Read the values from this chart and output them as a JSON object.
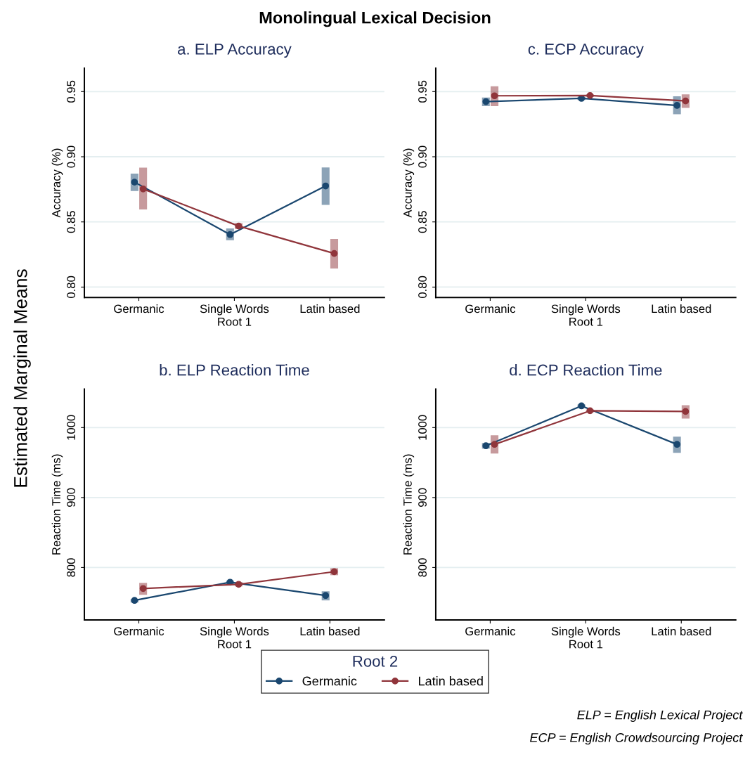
{
  "chart_data": [
    {
      "type": "line",
      "title": "a. ELP Accuracy",
      "xlabel": "Root 1",
      "ylabel": "Accuracy (%)",
      "categories": [
        "Germanic",
        "Single Words",
        "Latin based"
      ],
      "ylim": [
        0.792,
        0.968
      ],
      "yticks": [
        {
          "value": 0.8,
          "label": "0.80"
        },
        {
          "value": 0.85,
          "label": "0.85"
        },
        {
          "value": 0.9,
          "label": "0.90"
        },
        {
          "value": 0.95,
          "label": "0.95"
        }
      ],
      "grid": "y",
      "marker": "circle",
      "line_style": "solid",
      "legend": "bottom",
      "legend_title": "Root 2",
      "annotations": [
        "Monolingual Lexical Decision",
        "Estimated Marginal Means"
      ],
      "series": [
        {
          "name": "Germanic",
          "color": "#1a476f",
          "values": [
            0.8805,
            0.8403,
            0.8776
          ],
          "errors": [
            [
              0.8737,
              0.887
            ],
            [
              0.8359,
              0.845
            ],
            [
              0.8631,
              0.8918
            ]
          ]
        },
        {
          "name": "Latin based",
          "color": "#90353b",
          "values": [
            0.8753,
            0.8468,
            0.8258
          ],
          "errors": [
            [
              0.8595,
              0.8916
            ],
            [
              0.8446,
              0.849
            ],
            [
              0.8142,
              0.8369
            ]
          ]
        }
      ]
    },
    {
      "type": "line",
      "title": "c. ECP Accuracy",
      "xlabel": "Root 1",
      "ylabel": "Accuracy (%)",
      "categories": [
        "Germanic",
        "Single Words",
        "Latin based"
      ],
      "ylim": [
        0.792,
        0.968
      ],
      "yticks": [
        {
          "value": 0.8,
          "label": "0.80"
        },
        {
          "value": 0.85,
          "label": "0.85"
        },
        {
          "value": 0.9,
          "label": "0.90"
        },
        {
          "value": 0.95,
          "label": "0.95"
        }
      ],
      "grid": "y",
      "marker": "circle",
      "line_style": "solid",
      "series": [
        {
          "color": "#1a476f",
          "values": [
            0.9423,
            0.9448,
            0.9394
          ],
          "errors": [
            [
              0.9389,
              0.9455
            ],
            [
              0.9436,
              0.946
            ],
            [
              0.9326,
              0.9464
            ]
          ]
        },
        {
          "color": "#90353b",
          "values": [
            0.9468,
            0.947,
            0.9428
          ],
          "errors": [
            [
              0.9389,
              0.9541
            ],
            [
              0.946,
              0.9479
            ],
            [
              0.9375,
              0.9479
            ]
          ]
        }
      ]
    },
    {
      "type": "line",
      "title": "b. ELP Reaction Time",
      "xlabel": "Root 1",
      "ylabel": "Reaction Time (ms)",
      "categories": [
        "Germanic",
        "Single Words",
        "Latin based"
      ],
      "ylim": [
        725,
        1055
      ],
      "yticks": [
        800,
        900,
        1000
      ],
      "grid": "y",
      "marker": "circle",
      "line_style": "solid",
      "series": [
        {
          "color": "#1a476f",
          "values": [
            753,
            779,
            760
          ],
          "errors": [
            [
              750,
              755
            ],
            [
              776,
              781
            ],
            [
              753,
              766
            ]
          ]
        },
        {
          "color": "#90353b",
          "values": [
            770,
            776,
            794
          ],
          "errors": [
            [
              761,
              778
            ],
            [
              773,
              779
            ],
            [
              789,
              799
            ]
          ]
        }
      ]
    },
    {
      "type": "line",
      "title": "d. ECP Reaction Time",
      "xlabel": "Root 1",
      "ylabel": "Reaction Time (ms)",
      "categories": [
        "Germanic",
        "Single Words",
        "Latin based"
      ],
      "ylim": [
        725,
        1055
      ],
      "yticks": [
        800,
        900,
        1000
      ],
      "grid": "y",
      "marker": "circle",
      "line_style": "solid",
      "annotations": [
        "ELP = English Lexical Project",
        "ECP = English Crowdsourcing Project"
      ],
      "series": [
        {
          "color": "#1a476f",
          "values": [
            974,
            1031,
            976
          ],
          "errors": [
            [
              970,
              978
            ],
            [
              1029,
              1033
            ],
            [
              964,
              987
            ]
          ]
        },
        {
          "color": "#90353b",
          "values": [
            976,
            1024,
            1023
          ],
          "errors": [
            [
              963,
              989
            ],
            [
              1022,
              1026
            ],
            [
              1013,
              1032
            ]
          ]
        }
      ]
    }
  ]
}
